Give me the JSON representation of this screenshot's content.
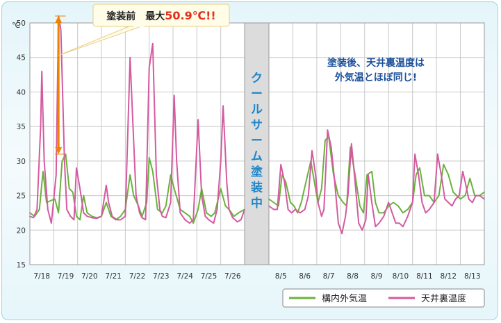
{
  "chart_data": {
    "type": "line",
    "y_unit": "℃",
    "ylim": [
      15,
      50
    ],
    "y_ticks": [
      "15",
      "20",
      "25",
      "30",
      "35",
      "40",
      "45",
      "50"
    ],
    "grid": true,
    "legend_position": "bottom-right",
    "divider_label": "クールサーム塗装中",
    "callout_before": {
      "prefix": "塗装前　最大",
      "value": "50.9℃!!"
    },
    "callout_after": {
      "line1": "塗装後、天井裏温度は",
      "line2": "外気温とほぼ同じ!"
    },
    "colors": {
      "outdoor": "#6ab23c",
      "attic": "#d45aa0",
      "arrow": "#ef8200",
      "divider": "#1e86c9"
    },
    "panels": [
      {
        "name": "before",
        "x_ticks": [
          "7/18",
          "7/19",
          "7/20",
          "7/21",
          "7/22",
          "7/23",
          "7/24",
          "7/25",
          "7/26"
        ],
        "x_range": [
          0,
          9
        ],
        "series": [
          {
            "name": "構内外気温",
            "x": [
              0,
              0.2,
              0.4,
              0.55,
              0.7,
              0.9,
              1.05,
              1.2,
              1.35,
              1.5,
              1.65,
              1.8,
              1.95,
              2.1,
              2.25,
              2.4,
              2.6,
              2.8,
              3.0,
              3.2,
              3.4,
              3.6,
              3.8,
              4.0,
              4.2,
              4.35,
              4.55,
              4.7,
              4.9,
              5.0,
              5.15,
              5.35,
              5.55,
              5.7,
              5.9,
              6.05,
              6.3,
              6.5,
              6.7,
              6.85,
              7.05,
              7.2,
              7.4,
              7.6,
              7.75,
              8.0,
              8.2,
              8.35,
              8.55,
              8.75,
              9.0
            ],
            "y": [
              22.5,
              22,
              23,
              28.5,
              24,
              24.3,
              24.5,
              22.5,
              30,
              31,
              26,
              25.5,
              22,
              21.5,
              25,
              22.5,
              22,
              21.8,
              22,
              24,
              22,
              21.5,
              22,
              23,
              28,
              25,
              23.5,
              22,
              24,
              30.5,
              28.5,
              23,
              22.5,
              23.5,
              28,
              26,
              23,
              22.5,
              22,
              21,
              23,
              26,
              22.5,
              22,
              22.5,
              26,
              23.5,
              23,
              22,
              22.5,
              23
            ]
          },
          {
            "name": "天井裏温度",
            "x": [
              0,
              0.15,
              0.3,
              0.45,
              0.5,
              0.6,
              0.75,
              0.9,
              1.1,
              1.2,
              1.3,
              1.45,
              1.55,
              1.7,
              1.85,
              1.95,
              2.1,
              2.25,
              2.4,
              2.6,
              2.8,
              3.0,
              3.2,
              3.3,
              3.45,
              3.65,
              3.8,
              4.0,
              4.2,
              4.35,
              4.45,
              4.6,
              4.7,
              4.85,
              5.0,
              5.15,
              5.3,
              5.45,
              5.55,
              5.7,
              5.9,
              6.05,
              6.15,
              6.3,
              6.5,
              6.7,
              6.85,
              7.05,
              7.2,
              7.35,
              7.5,
              7.7,
              7.85,
              8.0,
              8.1,
              8.25,
              8.35,
              8.5,
              8.7,
              8.85,
              9.0
            ],
            "y": [
              22,
              21.8,
              23,
              35,
              43,
              30,
              23,
              21,
              28,
              51,
              49,
              30,
              23,
              22,
              21.5,
              29,
              26,
              22.5,
              22,
              21.8,
              21.7,
              22,
              26.5,
              24,
              22,
              21.5,
              21.5,
              22,
              45,
              33,
              25,
              22.5,
              21.8,
              21.5,
              43.5,
              47,
              28,
              23,
              22,
              21.8,
              24,
              39.5,
              30,
              22.5,
              21.5,
              21,
              21.5,
              36,
              25,
              22,
              21.5,
              21,
              23,
              30,
              38,
              27,
              23,
              21.8,
              21.2,
              21.5,
              23
            ]
          }
        ]
      },
      {
        "name": "after",
        "x_ticks": [
          "8/5",
          "8/6",
          "8/7",
          "8/8",
          "8/9",
          "8/10",
          "8/11",
          "8/12",
          "8/13"
        ],
        "x_range": [
          0,
          9
        ],
        "series": [
          {
            "name": "構内外気温",
            "x": [
              0,
              0.2,
              0.4,
              0.55,
              0.7,
              0.9,
              1.05,
              1.2,
              1.35,
              1.55,
              1.75,
              1.9,
              2.05,
              2.2,
              2.35,
              2.5,
              2.7,
              2.9,
              3.1,
              3.25,
              3.4,
              3.6,
              3.8,
              3.95,
              4.1,
              4.3,
              4.45,
              4.6,
              4.8,
              5.0,
              5.2,
              5.4,
              5.6,
              5.8,
              6.0,
              6.15,
              6.3,
              6.5,
              6.7,
              6.9,
              7.1,
              7.3,
              7.5,
              7.7,
              7.85,
              8.0,
              8.2,
              8.4,
              8.6,
              8.8,
              9.0
            ],
            "y": [
              24.5,
              24,
              23.5,
              28,
              27,
              24,
              23.5,
              22.5,
              24,
              27,
              30,
              27,
              24,
              26,
              33,
              33.5,
              28,
              25,
              24,
              23.5,
              32,
              28,
              23.5,
              22.5,
              28,
              28.5,
              24,
              22.5,
              22.5,
              23.5,
              24,
              23.5,
              22.5,
              23,
              24,
              28,
              29,
              25,
              25,
              24,
              25,
              29.5,
              28,
              25.5,
              25,
              24.5,
              25,
              27.5,
              25,
              25,
              25.5
            ]
          },
          {
            "name": "天井裏温度",
            "x": [
              0,
              0.2,
              0.35,
              0.5,
              0.65,
              0.8,
              0.95,
              1.1,
              1.3,
              1.5,
              1.65,
              1.8,
              1.95,
              2.05,
              2.2,
              2.3,
              2.45,
              2.6,
              2.75,
              2.9,
              3.05,
              3.2,
              3.3,
              3.45,
              3.6,
              3.75,
              3.9,
              4.05,
              4.15,
              4.3,
              4.45,
              4.6,
              4.8,
              5.0,
              5.15,
              5.3,
              5.45,
              5.6,
              5.8,
              6.0,
              6.1,
              6.25,
              6.4,
              6.55,
              6.7,
              6.9,
              7.05,
              7.2,
              7.35,
              7.5,
              7.65,
              7.8,
              7.95,
              8.1,
              8.2,
              8.35,
              8.5,
              8.65,
              8.8,
              9.0
            ],
            "y": [
              23.5,
              23,
              23,
              29.5,
              27,
              23,
              22.5,
              23,
              22.5,
              23,
              25,
              31.5,
              28,
              24,
              22,
              23,
              34.5,
              32,
              27,
              21,
              19.5,
              22,
              25,
              32.5,
              27,
              21,
              20,
              21.5,
              28,
              24,
              20.5,
              21,
              22,
              24,
              22.5,
              21,
              21,
              20.5,
              22,
              24,
              31,
              28,
              24,
              22.5,
              23,
              24,
              31,
              28,
              24.5,
              24,
              23.5,
              24.5,
              25,
              28.5,
              27,
              24.5,
              24,
              25,
              25,
              24.5
            ]
          }
        ]
      }
    ]
  }
}
